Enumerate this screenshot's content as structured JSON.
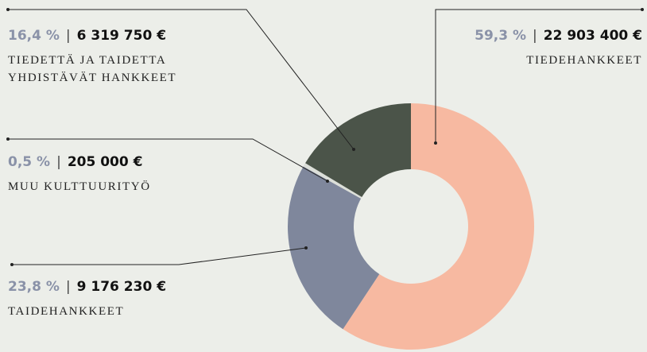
{
  "chart_data": {
    "type": "donut",
    "categories": [
      "TIEDEHANKKEET",
      "TAIDEHANKKEET",
      "MUU KULTTUURITYÖ",
      "TIEDETTÄ JA TAIDETTA YHDISTÄVÄT HANKKEET"
    ],
    "values": [
      59.3,
      23.8,
      0.5,
      16.4
    ],
    "value_labels": [
      "59,3 %",
      "23,8 %",
      "0,5 %",
      "16,4 %"
    ],
    "amounts": [
      22903400,
      9176230,
      205000,
      6319750
    ],
    "amount_labels": [
      "22 903 400 €",
      "9 176 230 €",
      "205 000 €",
      "6 319 750 €"
    ],
    "colors": [
      "#f7b9a1",
      "#7f879c",
      "#dcdfd9",
      "#4b5449"
    ]
  }
}
